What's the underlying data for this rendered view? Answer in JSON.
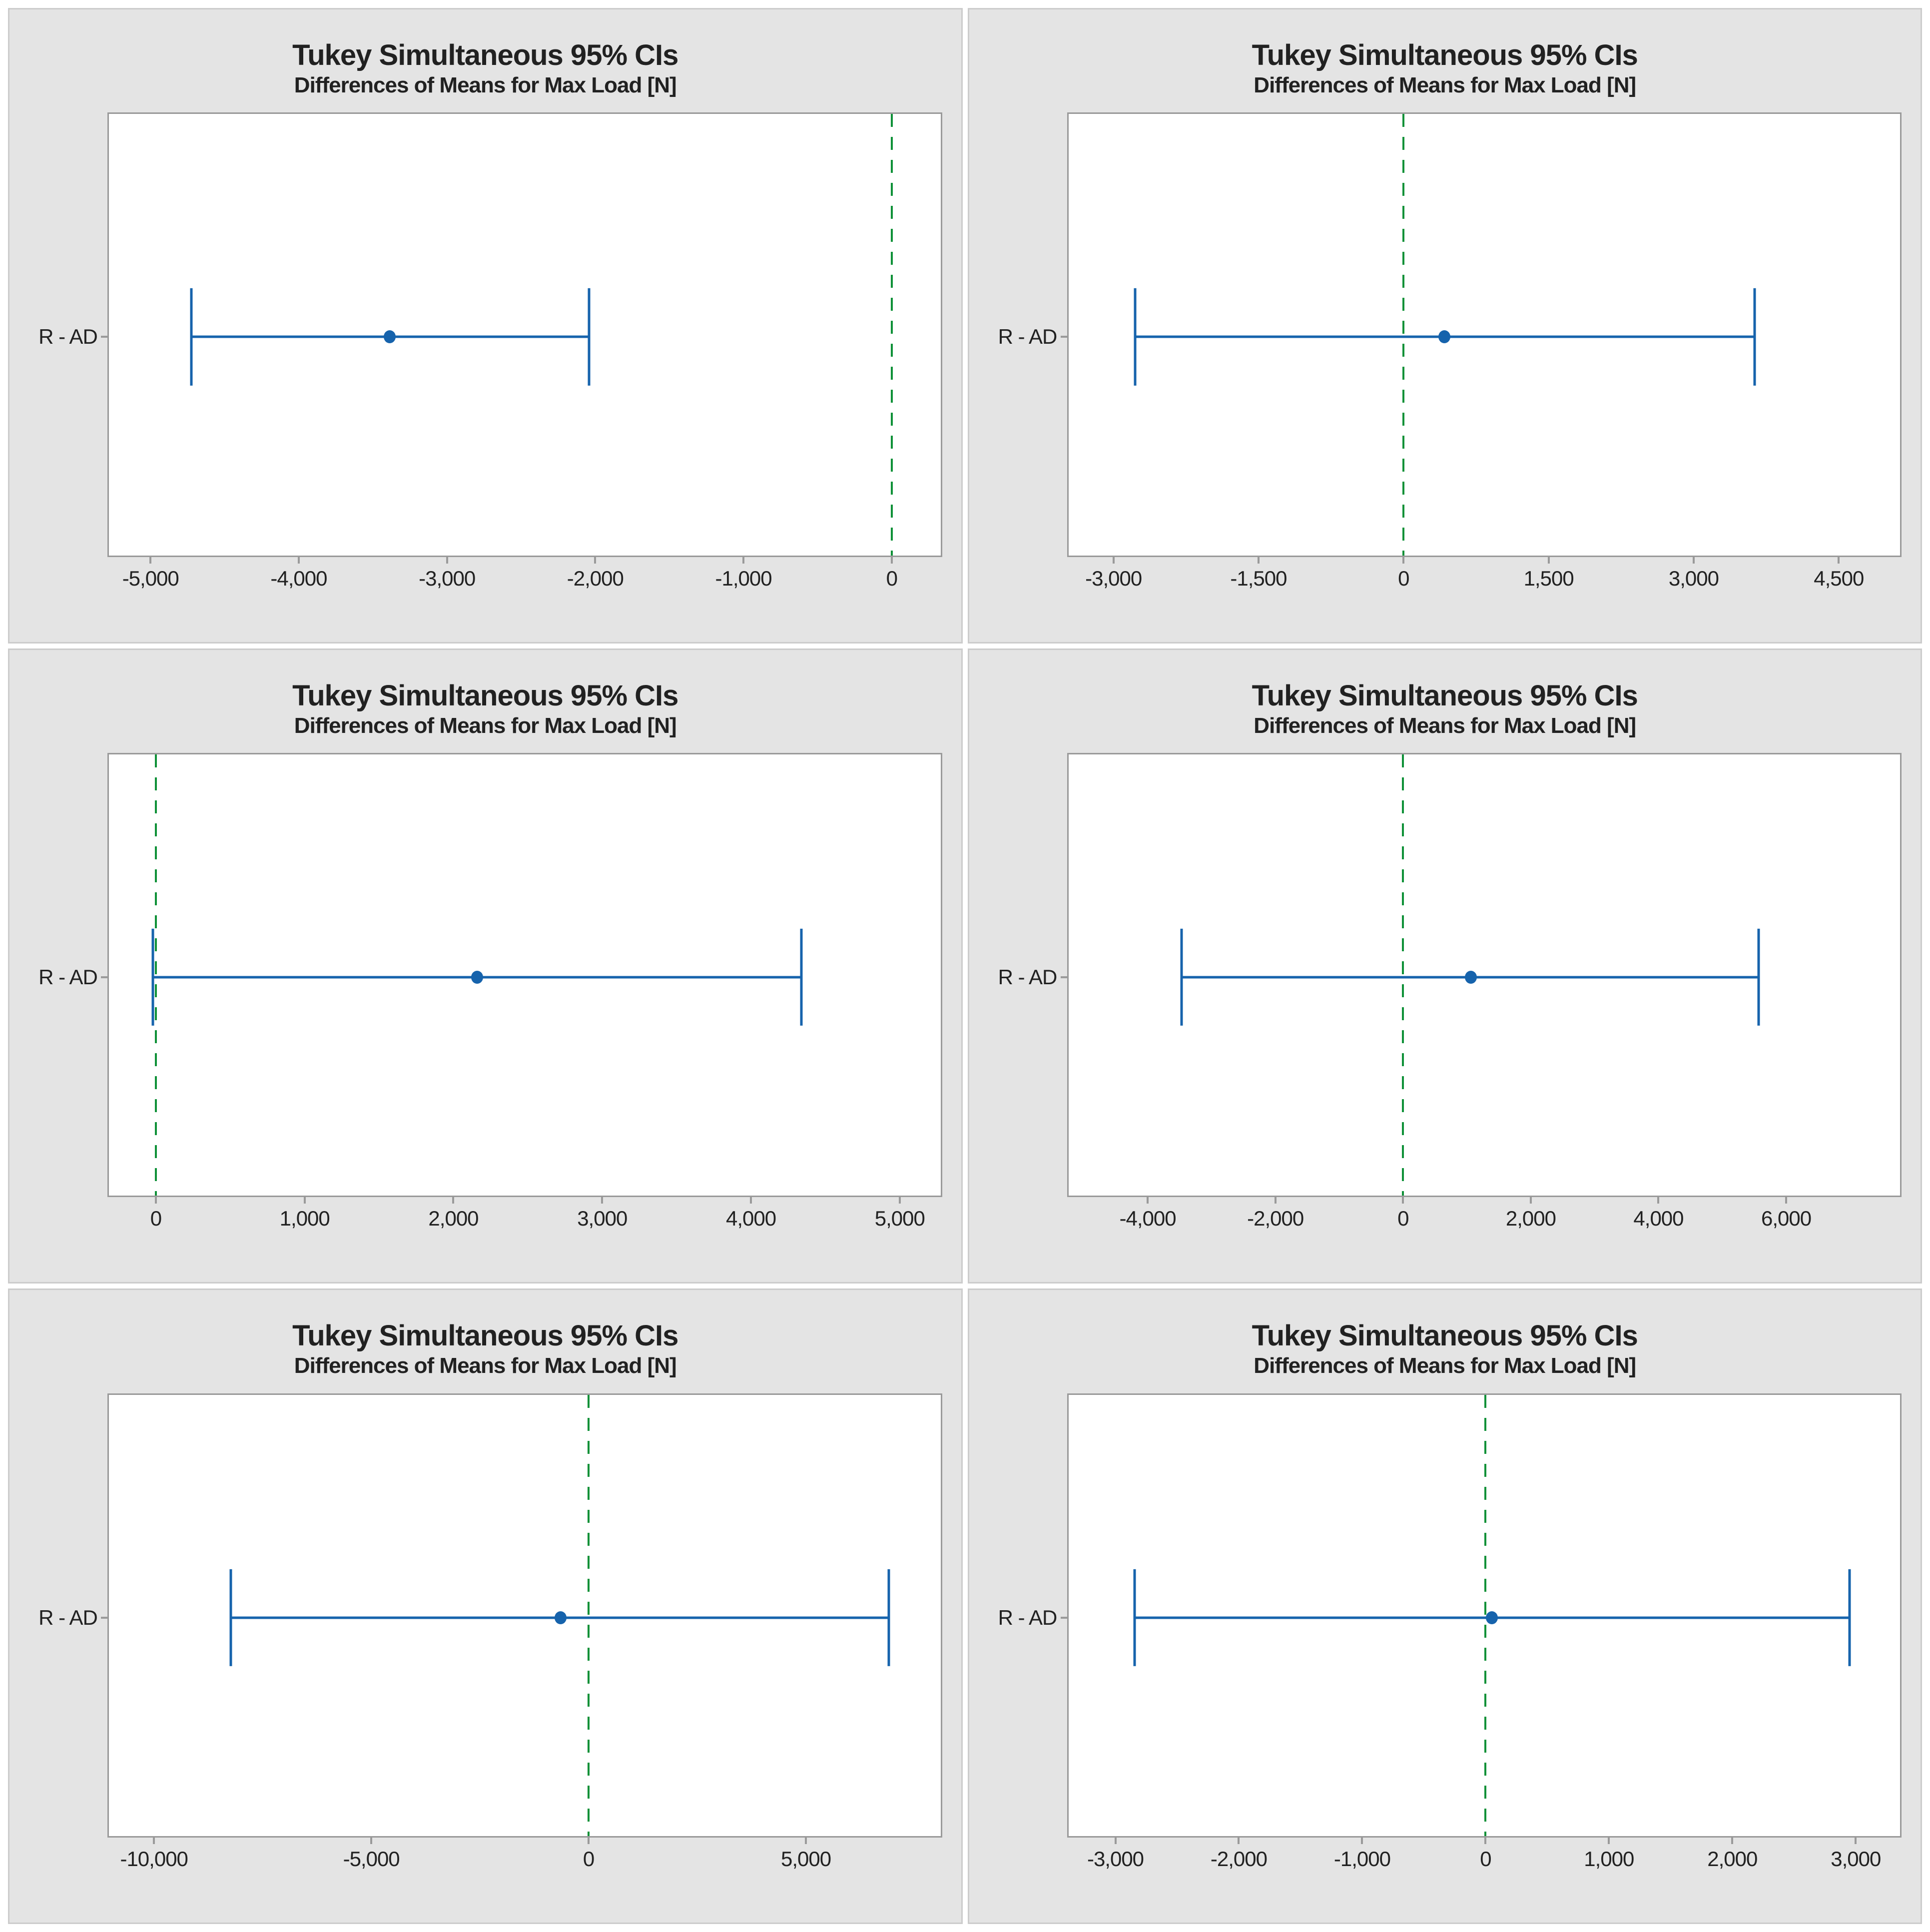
{
  "style": {
    "panel_bg": "#e4e4e4",
    "panel_border": "#cccccc",
    "plot_bg": "#ffffff",
    "plot_border": "#9a9a9a",
    "tick_color": "#9a9a9a",
    "text_color": "#212121",
    "interval_color": "#1663ac",
    "zero_line_color": "#0f9138"
  },
  "chart_data": [
    {
      "type": "interval",
      "title": "Tukey Simultaneous 95% CIs",
      "subtitle": "Differences of Means for Max Load [N]",
      "comparison_label": "R - AD",
      "ci": {
        "lower": -4725,
        "center": -3385,
        "upper": -2040
      },
      "zero_line": 0,
      "xlim": [
        -5280,
        330
      ],
      "x_ticks": [
        {
          "v": -5000,
          "label": "-5,000"
        },
        {
          "v": -4000,
          "label": "-4,000"
        },
        {
          "v": -3000,
          "label": "-3,000"
        },
        {
          "v": -2000,
          "label": "-2,000"
        },
        {
          "v": -1000,
          "label": "-1,000"
        },
        {
          "v": 0,
          "label": "0"
        }
      ]
    },
    {
      "type": "interval",
      "title": "Tukey Simultaneous 95% CIs",
      "subtitle": "Differences of Means for Max Load [N]",
      "comparison_label": "R - AD",
      "ci": {
        "lower": -2775,
        "center": 420,
        "upper": 3630
      },
      "zero_line": 0,
      "xlim": [
        -3465,
        5135
      ],
      "x_ticks": [
        {
          "v": -3000,
          "label": "-3,000"
        },
        {
          "v": -1500,
          "label": "-1,500"
        },
        {
          "v": 0,
          "label": "0"
        },
        {
          "v": 1500,
          "label": "1,500"
        },
        {
          "v": 3000,
          "label": "3,000"
        },
        {
          "v": 4500,
          "label": "4,500"
        }
      ]
    },
    {
      "type": "interval",
      "title": "Tukey Simultaneous 95% CIs",
      "subtitle": "Differences of Means for Max Load [N]",
      "comparison_label": "R - AD",
      "ci": {
        "lower": -20,
        "center": 2160,
        "upper": 4340
      },
      "zero_line": 0,
      "xlim": [
        -315,
        5275
      ],
      "x_ticks": [
        {
          "v": 0,
          "label": "0"
        },
        {
          "v": 1000,
          "label": "1,000"
        },
        {
          "v": 2000,
          "label": "2,000"
        },
        {
          "v": 3000,
          "label": "3,000"
        },
        {
          "v": 4000,
          "label": "4,000"
        },
        {
          "v": 5000,
          "label": "5,000"
        }
      ]
    },
    {
      "type": "interval",
      "title": "Tukey Simultaneous 95% CIs",
      "subtitle": "Differences of Means for Max Load [N]",
      "comparison_label": "R - AD",
      "ci": {
        "lower": -3465,
        "center": 1060,
        "upper": 5570
      },
      "zero_line": 0,
      "xlim": [
        -5240,
        7785
      ],
      "x_ticks": [
        {
          "v": -4000,
          "label": "-4,000"
        },
        {
          "v": -2000,
          "label": "-2,000"
        },
        {
          "v": 0,
          "label": "0"
        },
        {
          "v": 2000,
          "label": "2,000"
        },
        {
          "v": 4000,
          "label": "4,000"
        },
        {
          "v": 6000,
          "label": "6,000"
        }
      ]
    },
    {
      "type": "interval",
      "title": "Tukey Simultaneous 95% CIs",
      "subtitle": "Differences of Means for Max Load [N]",
      "comparison_label": "R - AD",
      "ci": {
        "lower": -8230,
        "center": -650,
        "upper": 6910
      },
      "zero_line": 0,
      "xlim": [
        -11035,
        8100
      ],
      "x_ticks": [
        {
          "v": -10000,
          "label": "-10,000"
        },
        {
          "v": -5000,
          "label": "-5,000"
        },
        {
          "v": 0,
          "label": "0"
        },
        {
          "v": 5000,
          "label": "5,000"
        }
      ]
    },
    {
      "type": "interval",
      "title": "Tukey Simultaneous 95% CIs",
      "subtitle": "Differences of Means for Max Load [N]",
      "comparison_label": "R - AD",
      "ci": {
        "lower": -2845,
        "center": 50,
        "upper": 2950
      },
      "zero_line": 0,
      "xlim": [
        -3380,
        3360
      ],
      "x_ticks": [
        {
          "v": -3000,
          "label": "-3,000"
        },
        {
          "v": -2000,
          "label": "-2,000"
        },
        {
          "v": -1000,
          "label": "-1,000"
        },
        {
          "v": 0,
          "label": "0"
        },
        {
          "v": 1000,
          "label": "1,000"
        },
        {
          "v": 2000,
          "label": "2,000"
        },
        {
          "v": 3000,
          "label": "3,000"
        }
      ]
    }
  ]
}
